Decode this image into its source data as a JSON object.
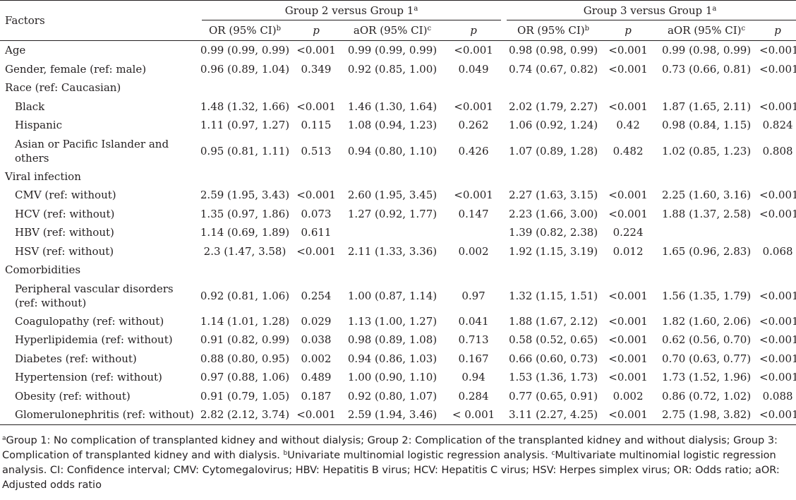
{
  "header": {
    "factors": "Factors",
    "group2_title": "Group 2 versus Group 1",
    "group3_title": "Group 3 versus Group 1",
    "sup_a": "a",
    "or_label": "OR (95% CI)",
    "sup_b": "b",
    "p_label": "p",
    "aor_label": "aOR (95% CI)",
    "sup_c": "c"
  },
  "rows": [
    {
      "factor": "Age",
      "g2_or": "0.99 (0.99, 0.99)",
      "g2_p": "<0.001",
      "g2_aor": "0.99 (0.99, 0.99)",
      "g2_ap": "<0.001",
      "g3_or": "0.98 (0.98, 0.99)",
      "g3_p": "<0.001",
      "g3_aor": "0.99 (0.98, 0.99)",
      "g3_ap": "<0.001"
    },
    {
      "factor": "Gender, female (ref: male)",
      "g2_or": "0.96 (0.89, 1.04)",
      "g2_p": "0.349",
      "g2_aor": "0.92 (0.85, 1.00)",
      "g2_ap": "0.049",
      "g3_or": "0.74 (0.67, 0.82)",
      "g3_p": "<0.001",
      "g3_aor": "0.73 (0.66, 0.81)",
      "g3_ap": "<0.001"
    },
    {
      "factor": "Race (ref: Caucasian)",
      "g2_or": "",
      "g2_p": "",
      "g2_aor": "",
      "g2_ap": "",
      "g3_or": "",
      "g3_p": "",
      "g3_aor": "",
      "g3_ap": ""
    },
    {
      "factor": "Black",
      "g2_or": "1.48 (1.32, 1.66)",
      "g2_p": "<0.001",
      "g2_aor": "1.46 (1.30, 1.64)",
      "g2_ap": "<0.001",
      "g3_or": "2.02 (1.79, 2.27)",
      "g3_p": "<0.001",
      "g3_aor": "1.87 (1.65, 2.11)",
      "g3_ap": "<0.001"
    },
    {
      "factor": "Hispanic",
      "g2_or": "1.11 (0.97, 1.27)",
      "g2_p": "0.115",
      "g2_aor": "1.08 (0.94, 1.23)",
      "g2_ap": "0.262",
      "g3_or": "1.06 (0.92, 1.24)",
      "g3_p": "0.42",
      "g3_aor": "0.98 (0.84, 1.15)",
      "g3_ap": "0.824"
    },
    {
      "factor": "Asian or Pacific Islander and others",
      "g2_or": "0.95 (0.81, 1.11)",
      "g2_p": "0.513",
      "g2_aor": "0.94 (0.80, 1.10)",
      "g2_ap": "0.426",
      "g3_or": "1.07 (0.89, 1.28)",
      "g3_p": "0.482",
      "g3_aor": "1.02 (0.85, 1.23)",
      "g3_ap": "0.808"
    },
    {
      "factor": "Viral infection",
      "g2_or": "",
      "g2_p": "",
      "g2_aor": "",
      "g2_ap": "",
      "g3_or": "",
      "g3_p": "",
      "g3_aor": "",
      "g3_ap": ""
    },
    {
      "factor": "CMV (ref: without)",
      "g2_or": "2.59 (1.95, 3.43)",
      "g2_p": "<0.001",
      "g2_aor": "2.60 (1.95, 3.45)",
      "g2_ap": "<0.001",
      "g3_or": "2.27 (1.63, 3.15)",
      "g3_p": "<0.001",
      "g3_aor": "2.25 (1.60, 3.16)",
      "g3_ap": "<0.001"
    },
    {
      "factor": "HCV (ref: without)",
      "g2_or": "1.35 (0.97, 1.86)",
      "g2_p": "0.073",
      "g2_aor": "1.27 (0.92, 1.77)",
      "g2_ap": "0.147",
      "g3_or": "2.23 (1.66, 3.00)",
      "g3_p": "<0.001",
      "g3_aor": "1.88 (1.37, 2.58)",
      "g3_ap": "<0.001"
    },
    {
      "factor": "HBV (ref: without)",
      "g2_or": "1.14 (0.69, 1.89)",
      "g2_p": "0.611",
      "g2_aor": "",
      "g2_ap": "",
      "g3_or": "1.39 (0.82, 2.38)",
      "g3_p": "0.224",
      "g3_aor": "",
      "g3_ap": ""
    },
    {
      "factor": "HSV (ref: without)",
      "g2_or": "2.3 (1.47, 3.58)",
      "g2_p": "<0.001",
      "g2_aor": "2.11 (1.33, 3.36)",
      "g2_ap": "0.002",
      "g3_or": "1.92 (1.15, 3.19)",
      "g3_p": "0.012",
      "g3_aor": "1.65 (0.96, 2.83)",
      "g3_ap": "0.068"
    },
    {
      "factor": "Comorbidities",
      "g2_or": "",
      "g2_p": "",
      "g2_aor": "",
      "g2_ap": "",
      "g3_or": "",
      "g3_p": "",
      "g3_aor": "",
      "g3_ap": ""
    },
    {
      "factor": "Peripheral vascular disorders (ref: without)",
      "g2_or": "0.92 (0.81, 1.06)",
      "g2_p": "0.254",
      "g2_aor": "1.00 (0.87, 1.14)",
      "g2_ap": "0.97",
      "g3_or": "1.32 (1.15, 1.51)",
      "g3_p": "<0.001",
      "g3_aor": "1.56 (1.35, 1.79)",
      "g3_ap": "<0.001"
    },
    {
      "factor": "Coagulopathy (ref: without)",
      "g2_or": "1.14 (1.01, 1.28)",
      "g2_p": "0.029",
      "g2_aor": "1.13 (1.00, 1.27)",
      "g2_ap": "0.041",
      "g3_or": "1.88 (1.67, 2.12)",
      "g3_p": "<0.001",
      "g3_aor": "1.82 (1.60, 2.06)",
      "g3_ap": "<0.001"
    },
    {
      "factor": "Hyperlipidemia (ref: without)",
      "g2_or": "0.91 (0.82, 0.99)",
      "g2_p": "0.038",
      "g2_aor": "0.98 (0.89, 1.08)",
      "g2_ap": "0.713",
      "g3_or": "0.58 (0.52, 0.65)",
      "g3_p": "<0.001",
      "g3_aor": "0.62 (0.56, 0.70)",
      "g3_ap": "<0.001"
    },
    {
      "factor": "Diabetes (ref: without)",
      "g2_or": "0.88 (0.80, 0.95)",
      "g2_p": "0.002",
      "g2_aor": "0.94 (0.86, 1.03)",
      "g2_ap": "0.167",
      "g3_or": "0.66 (0.60, 0.73)",
      "g3_p": "<0.001",
      "g3_aor": "0.70 (0.63, 0.77)",
      "g3_ap": "<0.001"
    },
    {
      "factor": "Hypertension (ref: without)",
      "g2_or": "0.97 (0.88, 1.06)",
      "g2_p": "0.489",
      "g2_aor": "1.00 (0.90, 1.10)",
      "g2_ap": "0.94",
      "g3_or": "1.53 (1.36, 1.73)",
      "g3_p": "<0.001",
      "g3_aor": "1.73 (1.52, 1.96)",
      "g3_ap": "<0.001"
    },
    {
      "factor": "Obesity (ref: without)",
      "g2_or": "0.91 (0.79, 1.05)",
      "g2_p": "0.187",
      "g2_aor": "0.92 (0.80, 1.07)",
      "g2_ap": "0.284",
      "g3_or": "0.77 (0.65, 0.91)",
      "g3_p": "0.002",
      "g3_aor": "0.86 (0.72, 1.02)",
      "g3_ap": "0.088"
    },
    {
      "factor": "Glomerulonephritis (ref: without)",
      "g2_or": "2.82 (2.12, 3.74)",
      "g2_p": "<0.001",
      "g2_aor": "2.59 (1.94, 3.46)",
      "g2_ap": "< 0.001",
      "g3_or": "3.11 (2.27, 4.25)",
      "g3_p": "<0.001",
      "g3_aor": "2.75 (1.98, 3.82)",
      "g3_ap": "<0.001"
    }
  ],
  "footnote": {
    "sup_a": "a",
    "text_a": "Group 1: No complication of transplanted kidney and without dialysis; Group 2: Complication of the transplanted kidney and without dialysis; Group 3: Complication of transplanted kidney and with dialysis.",
    "sup_b": "b",
    "text_b": "Univariate multinomial logistic regression analysis.",
    "sup_c": "c",
    "text_c": "Multivariate multinomial logistic regression analysis. CI: Confidence interval; CMV: Cytomegalovirus; HBV: Hepatitis B virus; HCV: Hepatitis C virus; HSV: Herpes simplex virus; OR: Odds ratio; aOR: Adjusted odds ratio"
  }
}
